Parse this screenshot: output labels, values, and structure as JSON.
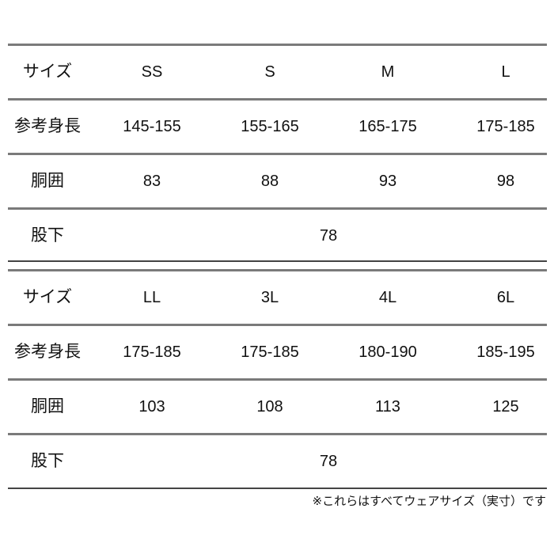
{
  "tables": [
    {
      "header_label": "サイズ",
      "sizes": [
        "SS",
        "S",
        "M",
        "L"
      ],
      "height_label": "参考身長",
      "heights": [
        "145-155",
        "155-165",
        "165-175",
        "175-185"
      ],
      "waist_label": "胴囲",
      "waists": [
        "83",
        "88",
        "93",
        "98"
      ],
      "inseam_label": "股下",
      "inseam": "78"
    },
    {
      "header_label": "サイズ",
      "sizes": [
        "LL",
        "3L",
        "4L",
        "6L"
      ],
      "height_label": "参考身長",
      "heights": [
        "175-185",
        "175-185",
        "180-190",
        "185-195"
      ],
      "waist_label": "胴囲",
      "waists": [
        "103",
        "108",
        "113",
        "125"
      ],
      "inseam_label": "股下",
      "inseam": "78"
    }
  ],
  "footnote": "※これらはすべてウェアサイズ（実寸）です"
}
